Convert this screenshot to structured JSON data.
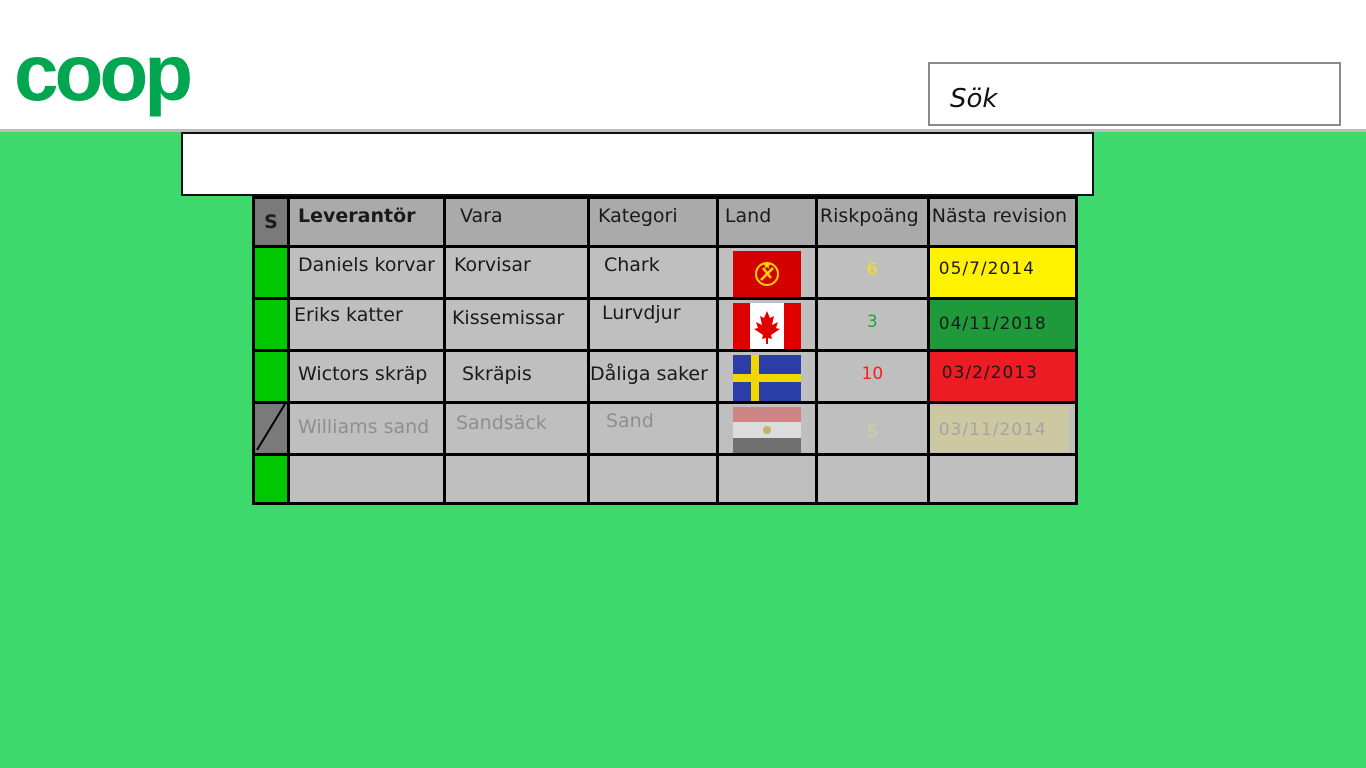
{
  "header": {
    "logo_text": "coop",
    "brand_color": "#00a650",
    "search_placeholder": "Sök"
  },
  "table": {
    "columns": [
      "S",
      "Leverantör",
      "Vara",
      "Kategori",
      "Land",
      "Riskpoäng",
      "Nästa revision"
    ],
    "rows": [
      {
        "status": "active",
        "supplier": "Daniels korvar",
        "product": "Korvisar",
        "category": "Chark",
        "flag": "soviet-flag-icon",
        "risk": "6",
        "risk_color": "#f7e600",
        "revision": "05/7/2014",
        "revision_color": "#fff200"
      },
      {
        "status": "active",
        "supplier": "Eriks katter",
        "product": "Kissemissar",
        "category": "Lurvdjur",
        "flag": "canada-flag-icon",
        "risk": "3",
        "risk_color": "#22a33a",
        "revision": "04/11/2018",
        "revision_color": "#1e9a3a"
      },
      {
        "status": "active",
        "supplier": "Wictors skräp",
        "product": "Skräpis",
        "category": "Dåliga saker",
        "flag": "sweden-flag-icon",
        "risk": "10",
        "risk_color": "#ff1a1a",
        "revision": "03/2/2013",
        "revision_color": "#ed1c24"
      },
      {
        "status": "inactive",
        "supplier": "Williams sand",
        "product": "Sandsäck",
        "category": "Sand",
        "flag": "egypt-flag-icon",
        "risk": "5",
        "risk_color": "#d8d090",
        "revision": "03/11/2014",
        "revision_color": "#d8d08a"
      }
    ]
  }
}
